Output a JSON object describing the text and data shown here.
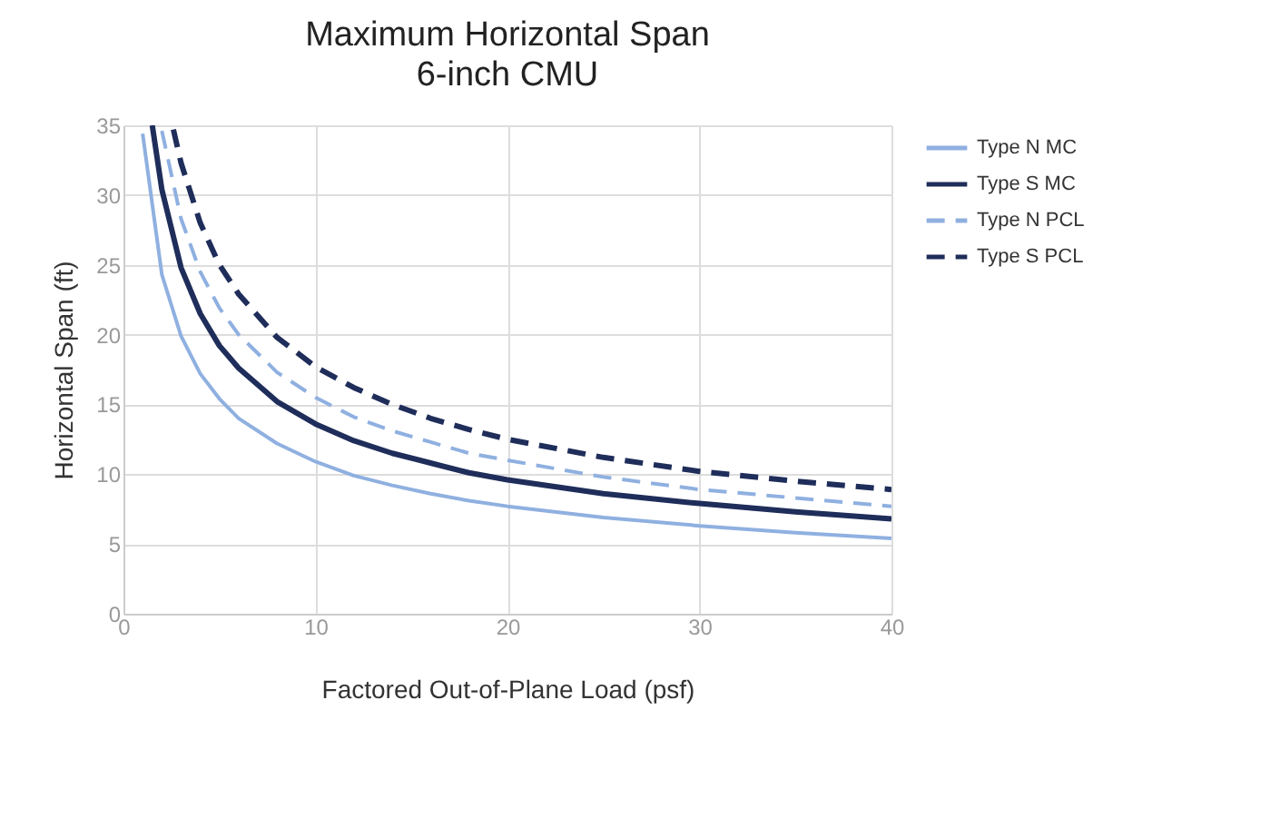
{
  "chart_data": {
    "type": "line",
    "title": "Maximum Horizontal Span",
    "subtitle": "6-inch CMU",
    "xlabel": "Factored Out-of-Plane Load (psf)",
    "ylabel": "Horizontal Span (ft)",
    "xlim": [
      0,
      40
    ],
    "xticks": [
      0,
      10,
      20,
      30,
      40
    ],
    "ylim": [
      0,
      35
    ],
    "yticks": [
      0,
      5,
      10,
      15,
      20,
      25,
      30,
      35
    ],
    "grid": true,
    "legend": "right",
    "marker": "none",
    "series": [
      {
        "name": "Type N MC",
        "color": "#8fb0e0",
        "line_style": "solid",
        "x": [
          1,
          2,
          3,
          4,
          5,
          6,
          8,
          10,
          12,
          14,
          16,
          18,
          20,
          25,
          30,
          35,
          40
        ],
        "values": [
          34.4,
          24.3,
          19.9,
          17.2,
          15.4,
          14.0,
          12.2,
          10.9,
          9.9,
          9.2,
          8.6,
          8.1,
          7.7,
          6.9,
          6.3,
          5.8,
          5.4
        ]
      },
      {
        "name": "Type S MC",
        "color": "#1f2d5a",
        "line_style": "solid",
        "x": [
          1.5,
          2,
          3,
          4,
          5,
          6,
          8,
          10,
          12,
          14,
          16,
          18,
          20,
          25,
          30,
          35,
          40
        ],
        "values": [
          35,
          30.4,
          24.8,
          21.5,
          19.2,
          17.6,
          15.2,
          13.6,
          12.4,
          11.5,
          10.8,
          10.1,
          9.6,
          8.6,
          7.9,
          7.3,
          6.8
        ]
      },
      {
        "name": "Type N PCL",
        "color": "#8fb0e0",
        "line_style": "dashed",
        "x": [
          2,
          3,
          4,
          5,
          6,
          8,
          10,
          12,
          14,
          16,
          18,
          20,
          25,
          30,
          35,
          40
        ],
        "values": [
          34.6,
          28.3,
          24.5,
          21.9,
          20.0,
          17.3,
          15.5,
          14.1,
          13.1,
          12.3,
          11.5,
          11.0,
          9.8,
          8.9,
          8.3,
          7.7
        ]
      },
      {
        "name": "Type S PCL",
        "color": "#1f2d5a",
        "line_style": "dashed",
        "x": [
          2.6,
          3,
          4,
          5,
          6,
          8,
          10,
          12,
          14,
          16,
          18,
          20,
          25,
          30,
          35,
          40
        ],
        "values": [
          34.7,
          32.3,
          28.0,
          25.0,
          22.9,
          19.8,
          17.7,
          16.2,
          15.0,
          14.0,
          13.2,
          12.5,
          11.2,
          10.2,
          9.5,
          8.9
        ]
      }
    ]
  }
}
